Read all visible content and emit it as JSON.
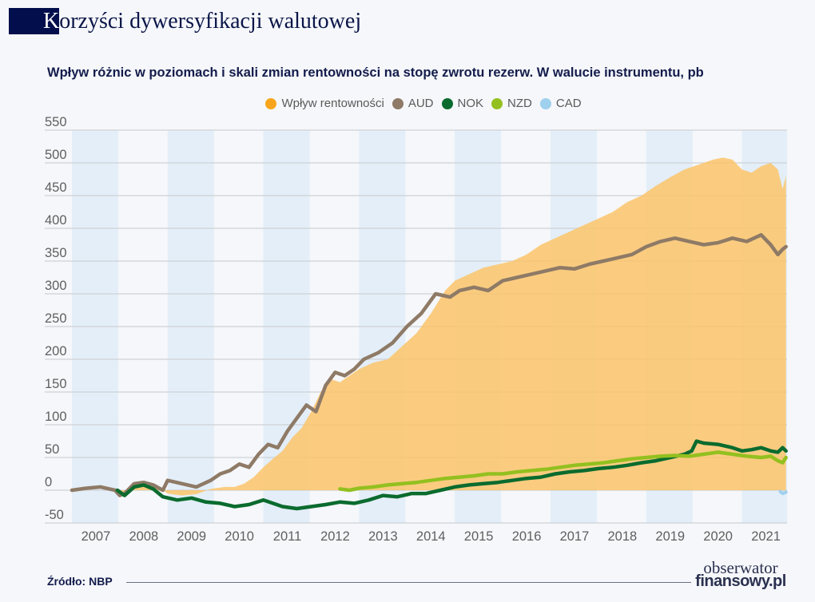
{
  "header": {
    "title_first_letter": "K",
    "title_rest": "orzyści dywersyfikacji walutowej"
  },
  "chart_data": {
    "type": "line",
    "title": "Wpływ różnic w poziomach i skali zmian rentowności na stopę zwrotu rezerw. W walucie instrumentu, pb",
    "xlabel": "",
    "ylabel": "",
    "ylim": [
      -50,
      550
    ],
    "yticks": [
      "550",
      "500",
      "450",
      "400",
      "350",
      "300",
      "250",
      "200",
      "150",
      "100",
      "50",
      "0",
      "-50"
    ],
    "ytick_values": [
      550,
      500,
      450,
      400,
      350,
      300,
      250,
      200,
      150,
      100,
      50,
      0,
      -50
    ],
    "xticks": [
      "2007",
      "2008",
      "2009",
      "2010",
      "2011",
      "2012",
      "2013",
      "2014",
      "2015",
      "2016",
      "2017",
      "2018",
      "2019",
      "2020",
      "2021"
    ],
    "xlim": [
      2007.0,
      2021.92
    ],
    "grid": true,
    "legend_position": "top-center",
    "shaded_years": [
      2007,
      2009,
      2011,
      2013,
      2015,
      2017,
      2019,
      2021
    ],
    "legend": [
      {
        "name": "Wpływ rentowności",
        "color": "#f9a51b"
      },
      {
        "name": "AUD",
        "color": "#8e7a66"
      },
      {
        "name": "NOK",
        "color": "#0a6b2e"
      },
      {
        "name": "NZD",
        "color": "#93c01f"
      },
      {
        "name": "CAD",
        "color": "#9fd0ee"
      }
    ],
    "series": [
      {
        "name": "Wpływ rentowności",
        "type": "area",
        "color": "#fbc46a",
        "x": [
          2007.0,
          2007.9,
          2008.0,
          2008.2,
          2008.4,
          2008.6,
          2008.8,
          2009.0,
          2009.3,
          2009.6,
          2009.9,
          2010.2,
          2010.4,
          2010.6,
          2010.8,
          2011.0,
          2011.2,
          2011.4,
          2011.6,
          2011.8,
          2012.0,
          2012.2,
          2012.4,
          2012.6,
          2012.8,
          2013.0,
          2013.3,
          2013.6,
          2013.9,
          2014.2,
          2014.5,
          2014.8,
          2015.0,
          2015.3,
          2015.6,
          2015.9,
          2016.2,
          2016.5,
          2016.8,
          2017.1,
          2017.4,
          2017.7,
          2018.0,
          2018.3,
          2018.6,
          2018.9,
          2019.2,
          2019.5,
          2019.8,
          2020.0,
          2020.2,
          2020.4,
          2020.6,
          2020.8,
          2021.0,
          2021.2,
          2021.4,
          2021.6,
          2021.75,
          2021.85,
          2021.92
        ],
        "values": [
          0,
          0,
          -8,
          5,
          12,
          10,
          5,
          -5,
          -8,
          -6,
          2,
          5,
          5,
          10,
          20,
          35,
          48,
          60,
          80,
          95,
          120,
          150,
          170,
          165,
          175,
          185,
          195,
          200,
          220,
          240,
          270,
          305,
          320,
          330,
          340,
          345,
          350,
          360,
          375,
          385,
          395,
          405,
          415,
          425,
          440,
          450,
          465,
          478,
          490,
          495,
          500,
          505,
          508,
          505,
          490,
          485,
          495,
          500,
          490,
          460,
          480
        ]
      },
      {
        "name": "AUD",
        "type": "line",
        "color": "#8e7a66",
        "x": [
          2007.0,
          2007.3,
          2007.6,
          2007.9,
          2008.0,
          2008.1,
          2008.3,
          2008.5,
          2008.7,
          2008.9,
          2009.0,
          2009.3,
          2009.6,
          2009.9,
          2010.1,
          2010.3,
          2010.5,
          2010.7,
          2010.9,
          2011.1,
          2011.3,
          2011.5,
          2011.7,
          2011.9,
          2012.1,
          2012.3,
          2012.5,
          2012.7,
          2012.9,
          2013.1,
          2013.4,
          2013.7,
          2014.0,
          2014.3,
          2014.6,
          2014.9,
          2015.1,
          2015.4,
          2015.7,
          2016.0,
          2016.3,
          2016.6,
          2016.9,
          2017.2,
          2017.5,
          2017.8,
          2018.1,
          2018.4,
          2018.7,
          2019.0,
          2019.3,
          2019.6,
          2019.9,
          2020.2,
          2020.5,
          2020.8,
          2021.1,
          2021.4,
          2021.6,
          2021.75,
          2021.85,
          2021.92
        ],
        "values": [
          0,
          3,
          5,
          0,
          -8,
          -5,
          10,
          12,
          8,
          0,
          15,
          10,
          5,
          15,
          25,
          30,
          40,
          35,
          55,
          70,
          65,
          90,
          110,
          130,
          120,
          160,
          180,
          175,
          185,
          200,
          210,
          225,
          250,
          270,
          300,
          295,
          305,
          310,
          305,
          320,
          325,
          330,
          335,
          340,
          338,
          345,
          350,
          355,
          360,
          372,
          380,
          385,
          380,
          375,
          378,
          385,
          380,
          390,
          375,
          360,
          368,
          372
        ]
      },
      {
        "name": "NOK",
        "type": "line",
        "color": "#0a6b2e",
        "x": [
          2007.95,
          2008.1,
          2008.3,
          2008.5,
          2008.7,
          2008.9,
          2009.2,
          2009.5,
          2009.8,
          2010.1,
          2010.4,
          2010.7,
          2011.0,
          2011.2,
          2011.4,
          2011.7,
          2012.0,
          2012.3,
          2012.6,
          2012.9,
          2013.2,
          2013.5,
          2013.8,
          2014.1,
          2014.4,
          2014.7,
          2015.0,
          2015.3,
          2015.6,
          2015.9,
          2016.2,
          2016.5,
          2016.8,
          2017.1,
          2017.4,
          2017.7,
          2018.0,
          2018.3,
          2018.6,
          2018.9,
          2019.2,
          2019.5,
          2019.8,
          2019.95,
          2020.05,
          2020.2,
          2020.5,
          2020.8,
          2021.0,
          2021.2,
          2021.4,
          2021.6,
          2021.75,
          2021.85,
          2021.92
        ],
        "values": [
          0,
          -8,
          5,
          8,
          2,
          -10,
          -15,
          -12,
          -18,
          -20,
          -25,
          -22,
          -15,
          -20,
          -25,
          -28,
          -25,
          -22,
          -18,
          -20,
          -15,
          -8,
          -10,
          -5,
          -5,
          0,
          5,
          8,
          10,
          12,
          15,
          18,
          20,
          25,
          28,
          30,
          33,
          35,
          38,
          42,
          45,
          50,
          55,
          60,
          75,
          72,
          70,
          65,
          60,
          62,
          65,
          60,
          58,
          65,
          60
        ]
      },
      {
        "name": "NZD",
        "type": "line",
        "color": "#93c01f",
        "x": [
          2012.6,
          2012.8,
          2013.0,
          2013.3,
          2013.6,
          2013.9,
          2014.2,
          2014.5,
          2014.8,
          2015.1,
          2015.4,
          2015.7,
          2016.0,
          2016.3,
          2016.6,
          2016.9,
          2017.2,
          2017.5,
          2017.8,
          2018.1,
          2018.4,
          2018.7,
          2019.0,
          2019.3,
          2019.6,
          2019.9,
          2020.2,
          2020.5,
          2020.8,
          2021.1,
          2021.4,
          2021.6,
          2021.75,
          2021.85,
          2021.92
        ],
        "values": [
          2,
          0,
          3,
          5,
          8,
          10,
          12,
          15,
          18,
          20,
          22,
          25,
          25,
          28,
          30,
          32,
          35,
          38,
          40,
          42,
          45,
          48,
          50,
          52,
          53,
          52,
          55,
          58,
          55,
          52,
          50,
          52,
          45,
          42,
          50
        ]
      },
      {
        "name": "CAD",
        "type": "line",
        "color": "#9fd0ee",
        "x": [
          2021.8,
          2021.85,
          2021.92
        ],
        "values": [
          -2,
          -5,
          -3
        ]
      }
    ]
  },
  "footer": {
    "source": "Źródło: NBP",
    "logo_line1": "obserwator",
    "logo_line2": "finansowy.pl"
  }
}
